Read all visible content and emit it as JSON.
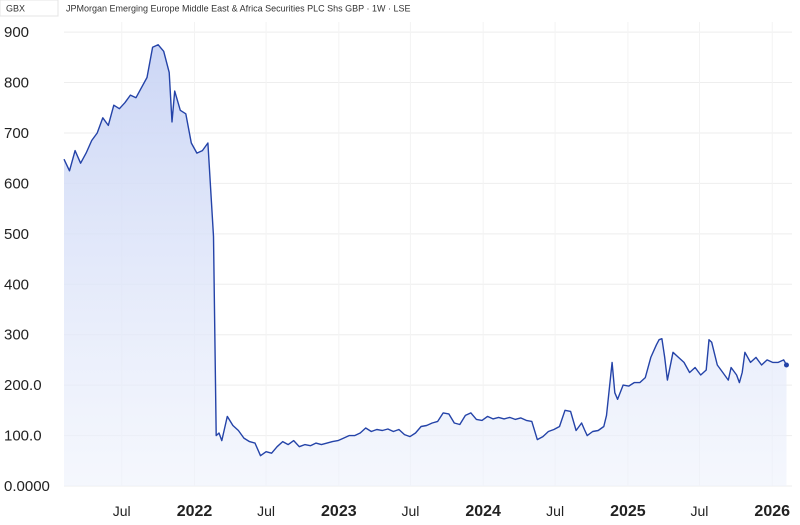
{
  "header": {
    "currency": "GBX",
    "title": "JPMorgan Emerging Europe Middle East & Africa Securities PLC Shs GBP · 1W · LSE"
  },
  "chart_data": {
    "type": "area",
    "title": "JPMorgan Emerging Europe Middle East & Africa Securities PLC Shs GBP · 1W · LSE",
    "ylabel": "GBX",
    "xlabel": "",
    "ylim": [
      0,
      920
    ],
    "xlim": [
      "2021-02-05",
      "2026-02-20"
    ],
    "grid": true,
    "line_color": "#2443a8",
    "fill_color": "#c9d4f5",
    "y_ticks": [
      {
        "value": 0,
        "label": "0.0000"
      },
      {
        "value": 100,
        "label": "100.0"
      },
      {
        "value": 200,
        "label": "200.0"
      },
      {
        "value": 300,
        "label": "300"
      },
      {
        "value": 400,
        "label": "400"
      },
      {
        "value": 500,
        "label": "500"
      },
      {
        "value": 600,
        "label": "600"
      },
      {
        "value": 700,
        "label": "700"
      },
      {
        "value": 800,
        "label": "800"
      },
      {
        "value": 900,
        "label": "900"
      }
    ],
    "x_ticks": [
      {
        "date": "2021-07-01",
        "label": "Jul",
        "bold": false
      },
      {
        "date": "2022-01-01",
        "label": "2022",
        "bold": true
      },
      {
        "date": "2022-07-01",
        "label": "Jul",
        "bold": false
      },
      {
        "date": "2023-01-01",
        "label": "2023",
        "bold": true
      },
      {
        "date": "2023-07-01",
        "label": "Jul",
        "bold": false
      },
      {
        "date": "2024-01-01",
        "label": "2024",
        "bold": true
      },
      {
        "date": "2024-07-01",
        "label": "Jul",
        "bold": false
      },
      {
        "date": "2025-01-01",
        "label": "2025",
        "bold": true
      },
      {
        "date": "2025-07-01",
        "label": "Jul",
        "bold": false
      },
      {
        "date": "2026-01-01",
        "label": "2026",
        "bold": true
      }
    ],
    "series": [
      {
        "points": [
          [
            "2021-02-05",
            648
          ],
          [
            "2021-02-19",
            625
          ],
          [
            "2021-03-05",
            665
          ],
          [
            "2021-03-19",
            640
          ],
          [
            "2021-04-02",
            660
          ],
          [
            "2021-04-16",
            685
          ],
          [
            "2021-04-30",
            700
          ],
          [
            "2021-05-14",
            730
          ],
          [
            "2021-05-28",
            715
          ],
          [
            "2021-06-11",
            755
          ],
          [
            "2021-06-25",
            748
          ],
          [
            "2021-07-09",
            760
          ],
          [
            "2021-07-23",
            775
          ],
          [
            "2021-08-06",
            770
          ],
          [
            "2021-08-20",
            790
          ],
          [
            "2021-09-03",
            810
          ],
          [
            "2021-09-17",
            870
          ],
          [
            "2021-10-01",
            875
          ],
          [
            "2021-10-15",
            862
          ],
          [
            "2021-10-29",
            820
          ],
          [
            "2021-11-05",
            722
          ],
          [
            "2021-11-12",
            783
          ],
          [
            "2021-11-26",
            745
          ],
          [
            "2021-12-10",
            738
          ],
          [
            "2021-12-24",
            680
          ],
          [
            "2022-01-07",
            660
          ],
          [
            "2022-01-21",
            665
          ],
          [
            "2022-02-04",
            680
          ],
          [
            "2022-02-18",
            495
          ],
          [
            "2022-02-25",
            100
          ],
          [
            "2022-03-04",
            105
          ],
          [
            "2022-03-11",
            90
          ],
          [
            "2022-03-25",
            138
          ],
          [
            "2022-04-08",
            120
          ],
          [
            "2022-04-22",
            110
          ],
          [
            "2022-05-06",
            95
          ],
          [
            "2022-05-20",
            88
          ],
          [
            "2022-06-03",
            85
          ],
          [
            "2022-06-17",
            60
          ],
          [
            "2022-07-01",
            68
          ],
          [
            "2022-07-15",
            65
          ],
          [
            "2022-07-29",
            78
          ],
          [
            "2022-08-12",
            88
          ],
          [
            "2022-08-26",
            82
          ],
          [
            "2022-09-09",
            90
          ],
          [
            "2022-09-23",
            78
          ],
          [
            "2022-10-07",
            82
          ],
          [
            "2022-10-21",
            80
          ],
          [
            "2022-11-04",
            85
          ],
          [
            "2022-11-18",
            82
          ],
          [
            "2022-12-02",
            85
          ],
          [
            "2022-12-16",
            88
          ],
          [
            "2022-12-30",
            90
          ],
          [
            "2023-01-13",
            95
          ],
          [
            "2023-01-27",
            100
          ],
          [
            "2023-02-10",
            100
          ],
          [
            "2023-02-24",
            105
          ],
          [
            "2023-03-10",
            115
          ],
          [
            "2023-03-24",
            108
          ],
          [
            "2023-04-07",
            112
          ],
          [
            "2023-04-21",
            110
          ],
          [
            "2023-05-05",
            113
          ],
          [
            "2023-05-19",
            108
          ],
          [
            "2023-06-02",
            112
          ],
          [
            "2023-06-16",
            102
          ],
          [
            "2023-06-30",
            98
          ],
          [
            "2023-07-14",
            105
          ],
          [
            "2023-07-28",
            118
          ],
          [
            "2023-08-11",
            120
          ],
          [
            "2023-08-25",
            125
          ],
          [
            "2023-09-08",
            128
          ],
          [
            "2023-09-22",
            145
          ],
          [
            "2023-10-06",
            143
          ],
          [
            "2023-10-20",
            125
          ],
          [
            "2023-11-03",
            122
          ],
          [
            "2023-11-17",
            140
          ],
          [
            "2023-12-01",
            145
          ],
          [
            "2023-12-15",
            132
          ],
          [
            "2023-12-29",
            130
          ],
          [
            "2024-01-12",
            138
          ],
          [
            "2024-01-26",
            133
          ],
          [
            "2024-02-09",
            136
          ],
          [
            "2024-02-23",
            133
          ],
          [
            "2024-03-08",
            136
          ],
          [
            "2024-03-22",
            132
          ],
          [
            "2024-04-05",
            135
          ],
          [
            "2024-04-19",
            130
          ],
          [
            "2024-05-03",
            128
          ],
          [
            "2024-05-17",
            92
          ],
          [
            "2024-05-31",
            98
          ],
          [
            "2024-06-14",
            108
          ],
          [
            "2024-06-28",
            112
          ],
          [
            "2024-07-12",
            118
          ],
          [
            "2024-07-26",
            150
          ],
          [
            "2024-08-09",
            148
          ],
          [
            "2024-08-23",
            110
          ],
          [
            "2024-09-06",
            125
          ],
          [
            "2024-09-13",
            112
          ],
          [
            "2024-09-20",
            100
          ],
          [
            "2024-10-04",
            108
          ],
          [
            "2024-10-18",
            110
          ],
          [
            "2024-11-01",
            118
          ],
          [
            "2024-11-08",
            140
          ],
          [
            "2024-11-22",
            245
          ],
          [
            "2024-11-29",
            185
          ],
          [
            "2024-12-06",
            172
          ],
          [
            "2024-12-20",
            200
          ],
          [
            "2025-01-03",
            198
          ],
          [
            "2025-01-17",
            205
          ],
          [
            "2025-01-31",
            205
          ],
          [
            "2025-02-14",
            215
          ],
          [
            "2025-02-28",
            255
          ],
          [
            "2025-03-14",
            280
          ],
          [
            "2025-03-21",
            290
          ],
          [
            "2025-03-28",
            292
          ],
          [
            "2025-04-04",
            255
          ],
          [
            "2025-04-11",
            210
          ],
          [
            "2025-04-25",
            265
          ],
          [
            "2025-05-09",
            255
          ],
          [
            "2025-05-23",
            245
          ],
          [
            "2025-06-06",
            225
          ],
          [
            "2025-06-20",
            235
          ],
          [
            "2025-07-04",
            220
          ],
          [
            "2025-07-18",
            230
          ],
          [
            "2025-07-25",
            290
          ],
          [
            "2025-08-01",
            285
          ],
          [
            "2025-08-15",
            240
          ],
          [
            "2025-08-29",
            225
          ],
          [
            "2025-09-12",
            210
          ],
          [
            "2025-09-19",
            235
          ],
          [
            "2025-10-03",
            220
          ],
          [
            "2025-10-10",
            205
          ],
          [
            "2025-10-17",
            225
          ],
          [
            "2025-10-24",
            265
          ],
          [
            "2025-11-07",
            245
          ],
          [
            "2025-11-21",
            255
          ],
          [
            "2025-12-05",
            240
          ],
          [
            "2025-12-19",
            250
          ],
          [
            "2026-01-02",
            245
          ],
          [
            "2026-01-16",
            245
          ],
          [
            "2026-01-30",
            250
          ],
          [
            "2026-02-06",
            240
          ]
        ]
      }
    ],
    "last_value": 240
  }
}
